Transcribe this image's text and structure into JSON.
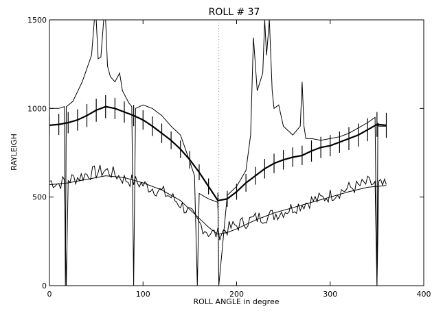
{
  "chart_data": {
    "type": "line",
    "title": "ROLL # 37",
    "xlabel": "ROLL ANGLE in degree",
    "ylabel": "RAYLEIGH",
    "xlim": [
      0,
      400
    ],
    "ylim": [
      0,
      1500
    ],
    "x_ticks": [
      0,
      100,
      200,
      300,
      400
    ],
    "y_ticks": [
      0,
      500,
      1000,
      1500
    ],
    "x_tick_labels": [
      "0",
      "100",
      "200",
      "300",
      "400"
    ],
    "y_tick_labels": [
      "0",
      "500",
      "1000",
      "1500"
    ],
    "reference_line_x": 181,
    "grid": false,
    "series": [
      {
        "style": "thin",
        "x": [
          0,
          10,
          16,
          17,
          18,
          25,
          35,
          45,
          48,
          50,
          52,
          55,
          58,
          60,
          62,
          65,
          70,
          75,
          78,
          85,
          88,
          90,
          92,
          100,
          110,
          120,
          130,
          140,
          150,
          155,
          158,
          160,
          170,
          180,
          181,
          190,
          200,
          210,
          215,
          218,
          222,
          228,
          230,
          232,
          235,
          238,
          240,
          245,
          250,
          260,
          268,
          270,
          272,
          274,
          280,
          290,
          300,
          310,
          320,
          330,
          340,
          348,
          350,
          351,
          352,
          360
        ],
        "y": [
          1000,
          1000,
          1010,
          0,
          1010,
          1040,
          1150,
          1300,
          1500,
          1500,
          1280,
          1290,
          1500,
          1500,
          1240,
          1180,
          1150,
          1200,
          1100,
          1030,
          1010,
          0,
          1000,
          1020,
          1000,
          960,
          900,
          850,
          700,
          620,
          0,
          520,
          490,
          470,
          0,
          510,
          560,
          650,
          850,
          1400,
          1100,
          1200,
          1500,
          1300,
          1500,
          1100,
          1000,
          1020,
          900,
          850,
          900,
          1150,
          900,
          830,
          830,
          820,
          830,
          840,
          860,
          890,
          920,
          950,
          0,
          920,
          900,
          900
        ]
      },
      {
        "style": "thick-with-error-bars",
        "x": [
          0,
          10,
          20,
          30,
          40,
          50,
          60,
          70,
          80,
          90,
          100,
          110,
          120,
          130,
          140,
          150,
          160,
          170,
          180,
          190,
          200,
          210,
          220,
          230,
          240,
          250,
          260,
          270,
          280,
          290,
          300,
          310,
          320,
          330,
          340,
          350,
          360
        ],
        "y": [
          905,
          910,
          920,
          935,
          960,
          990,
          1010,
          1000,
          980,
          960,
          935,
          900,
          860,
          820,
          770,
          710,
          640,
          560,
          480,
          490,
          530,
          580,
          620,
          660,
          690,
          710,
          725,
          735,
          760,
          780,
          790,
          810,
          830,
          850,
          880,
          910,
          905
        ],
        "error": [
          55,
          60,
          60,
          60,
          65,
          65,
          65,
          60,
          60,
          60,
          55,
          55,
          55,
          50,
          50,
          50,
          45,
          45,
          45,
          45,
          45,
          50,
          50,
          55,
          55,
          55,
          55,
          55,
          60,
          60,
          60,
          60,
          65,
          65,
          65,
          70,
          70
        ]
      },
      {
        "style": "thin-noisy",
        "x": [
          0,
          10,
          18,
          20,
          30,
          40,
          50,
          60,
          70,
          80,
          90,
          100,
          110,
          120,
          130,
          140,
          150,
          160,
          170,
          180,
          190,
          200,
          210,
          220,
          230,
          240,
          250,
          260,
          270,
          280,
          290,
          300,
          310,
          320,
          330,
          340,
          350,
          360
        ],
        "y": [
          590,
          575,
          0,
          600,
          610,
          630,
          640,
          650,
          630,
          600,
          590,
          570,
          550,
          530,
          500,
          460,
          410,
          350,
          300,
          290,
          320,
          340,
          360,
          380,
          390,
          400,
          420,
          440,
          460,
          480,
          490,
          510,
          530,
          550,
          560,
          580,
          0,
          560
        ],
        "noise": 40
      },
      {
        "style": "thin-smooth",
        "x": [
          0,
          20,
          40,
          60,
          80,
          100,
          120,
          140,
          160,
          170,
          180,
          190,
          200,
          220,
          240,
          260,
          280,
          300,
          320,
          340,
          360
        ],
        "y": [
          570,
          580,
          600,
          620,
          610,
          580,
          540,
          480,
          380,
          330,
          290,
          300,
          320,
          370,
          410,
          440,
          470,
          500,
          530,
          555,
          565
        ]
      }
    ]
  }
}
